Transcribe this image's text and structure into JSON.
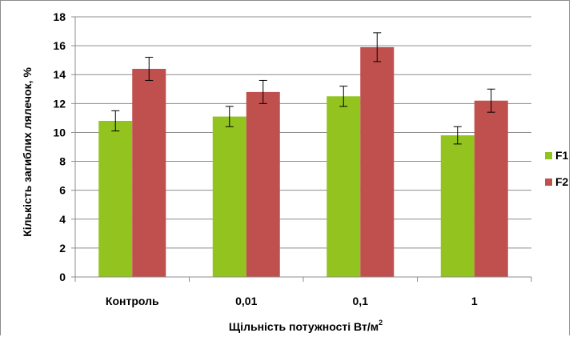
{
  "chart_data": {
    "type": "bar",
    "title": "",
    "xlabel": "Щільність потужності Вт/м",
    "xlabel_sup": "2",
    "ylabel": "Кількість загиблих лялечок, %",
    "ylim": [
      0,
      18
    ],
    "yticks": [
      0,
      2,
      4,
      6,
      8,
      10,
      12,
      14,
      16,
      18
    ],
    "grid": true,
    "legend_position": "right",
    "categories": [
      "Контроль",
      "0,01",
      "0,1",
      "1"
    ],
    "series": [
      {
        "name": "F1",
        "color": "#92c31e",
        "values": [
          10.8,
          11.1,
          12.5,
          9.8
        ],
        "errors": [
          0.7,
          0.7,
          0.7,
          0.6
        ]
      },
      {
        "name": "F2",
        "color": "#c0504d",
        "values": [
          14.4,
          12.8,
          15.9,
          12.2
        ],
        "errors": [
          0.8,
          0.8,
          1.0,
          0.8
        ]
      }
    ]
  }
}
